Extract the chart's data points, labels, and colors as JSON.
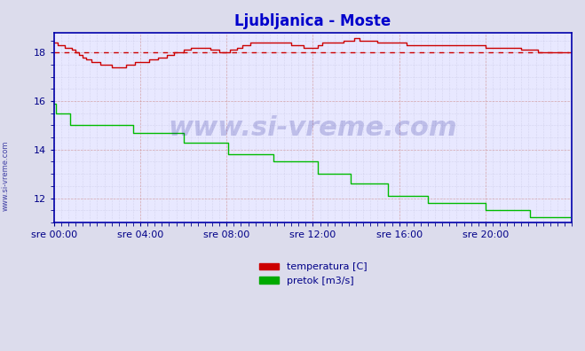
{
  "title": "Ljubljanica - Moste",
  "title_color": "#0000cc",
  "bg_color": "#e8e8f0",
  "plot_bg_color": "#e8e8ff",
  "grid_color_major": "#aaaacc",
  "grid_color_minor": "#ccccdd",
  "xlabel_color": "#000088",
  "ylabel_color": "#000088",
  "axis_color": "#0000aa",
  "watermark": "www.si-vreme.com",
  "xtick_labels": [
    "sre 00:00",
    "sre 04:00",
    "sre 08:00",
    "sre 12:00",
    "sre 16:00",
    "sre 20:00"
  ],
  "xtick_positions": [
    0,
    48,
    96,
    144,
    192,
    240
  ],
  "ytick_positions": [
    12,
    14,
    16,
    18
  ],
  "ylim": [
    11.0,
    18.8
  ],
  "xlim": [
    0,
    288
  ],
  "legend_labels": [
    "temperatura [C]",
    "pretok [m3/s]"
  ],
  "legend_colors": [
    "#cc0000",
    "#00aa00"
  ],
  "side_label": "www.si-vreme.com",
  "temp_color": "#cc0000",
  "flow_color": "#00bb00",
  "temp_avg_color": "#cc0000",
  "temp_data": [
    18.4,
    18.4,
    18.3,
    18.3,
    18.3,
    18.3,
    18.2,
    18.2,
    18.2,
    18.2,
    18.1,
    18.1,
    18.0,
    18.0,
    17.9,
    17.9,
    17.8,
    17.8,
    17.7,
    17.7,
    17.7,
    17.6,
    17.6,
    17.6,
    17.6,
    17.6,
    17.5,
    17.5,
    17.5,
    17.5,
    17.5,
    17.5,
    17.4,
    17.4,
    17.4,
    17.4,
    17.4,
    17.4,
    17.4,
    17.4,
    17.5,
    17.5,
    17.5,
    17.5,
    17.5,
    17.6,
    17.6,
    17.6,
    17.6,
    17.6,
    17.6,
    17.6,
    17.6,
    17.7,
    17.7,
    17.7,
    17.7,
    17.7,
    17.8,
    17.8,
    17.8,
    17.8,
    17.8,
    17.9,
    17.9,
    17.9,
    17.9,
    18.0,
    18.0,
    18.0,
    18.0,
    18.0,
    18.1,
    18.1,
    18.1,
    18.1,
    18.2,
    18.2,
    18.2,
    18.2,
    18.2,
    18.2,
    18.2,
    18.2,
    18.2,
    18.2,
    18.2,
    18.1,
    18.1,
    18.1,
    18.1,
    18.1,
    18.0,
    18.0,
    18.0,
    18.0,
    18.0,
    18.0,
    18.1,
    18.1,
    18.1,
    18.1,
    18.2,
    18.2,
    18.2,
    18.3,
    18.3,
    18.3,
    18.3,
    18.4,
    18.4,
    18.4,
    18.4,
    18.4,
    18.4,
    18.4,
    18.4,
    18.4,
    18.4,
    18.4,
    18.4,
    18.4,
    18.4,
    18.4,
    18.4,
    18.4,
    18.4,
    18.4,
    18.4,
    18.4,
    18.4,
    18.4,
    18.3,
    18.3,
    18.3,
    18.3,
    18.3,
    18.3,
    18.3,
    18.2,
    18.2,
    18.2,
    18.2,
    18.2,
    18.2,
    18.2,
    18.2,
    18.3,
    18.3,
    18.4,
    18.4,
    18.4,
    18.4,
    18.4,
    18.4,
    18.4,
    18.4,
    18.4,
    18.4,
    18.4,
    18.4,
    18.5,
    18.5,
    18.5,
    18.5,
    18.5,
    18.5,
    18.6,
    18.6,
    18.6,
    18.5,
    18.5,
    18.5,
    18.5,
    18.5,
    18.5,
    18.5,
    18.5,
    18.5,
    18.5,
    18.4,
    18.4,
    18.4,
    18.4,
    18.4,
    18.4,
    18.4,
    18.4,
    18.4,
    18.4,
    18.4,
    18.4,
    18.4,
    18.4,
    18.4,
    18.4,
    18.3,
    18.3,
    18.3,
    18.3,
    18.3,
    18.3,
    18.3,
    18.3,
    18.3,
    18.3,
    18.3,
    18.3,
    18.3,
    18.3,
    18.3,
    18.3,
    18.3,
    18.3,
    18.3,
    18.3,
    18.3,
    18.3,
    18.3,
    18.3,
    18.3,
    18.3,
    18.3,
    18.3,
    18.3,
    18.3,
    18.3,
    18.3,
    18.3,
    18.3,
    18.3,
    18.3,
    18.3,
    18.3,
    18.3,
    18.3,
    18.3,
    18.3,
    18.3,
    18.3,
    18.2,
    18.2,
    18.2,
    18.2,
    18.2,
    18.2,
    18.2,
    18.2,
    18.2,
    18.2,
    18.2,
    18.2,
    18.2,
    18.2,
    18.2,
    18.2,
    18.2,
    18.2,
    18.2,
    18.2,
    18.1,
    18.1,
    18.1,
    18.1,
    18.1,
    18.1,
    18.1,
    18.1,
    18.1,
    18.0,
    18.0,
    18.0,
    18.0,
    18.0,
    18.0,
    18.0,
    18.0,
    18.0,
    18.0,
    18.0,
    18.0,
    18.0,
    18.0,
    18.0,
    18.0,
    18.0,
    18.0
  ],
  "flow_data": [
    15.9,
    15.5,
    15.5,
    15.5,
    15.5,
    15.5,
    15.5,
    15.5,
    15.5,
    15.0,
    15.0,
    15.0,
    15.0,
    15.0,
    15.0,
    15.0,
    15.0,
    15.0,
    15.0,
    15.0,
    15.0,
    15.0,
    15.0,
    15.0,
    15.0,
    15.0,
    15.0,
    15.0,
    15.0,
    15.0,
    15.0,
    15.0,
    15.0,
    15.0,
    15.0,
    15.0,
    15.0,
    15.0,
    15.0,
    15.0,
    15.0,
    15.0,
    15.0,
    15.0,
    14.7,
    14.7,
    14.7,
    14.7,
    14.7,
    14.7,
    14.7,
    14.7,
    14.7,
    14.7,
    14.7,
    14.7,
    14.7,
    14.7,
    14.7,
    14.7,
    14.7,
    14.7,
    14.7,
    14.7,
    14.7,
    14.7,
    14.7,
    14.7,
    14.7,
    14.7,
    14.7,
    14.7,
    14.3,
    14.3,
    14.3,
    14.3,
    14.3,
    14.3,
    14.3,
    14.3,
    14.3,
    14.3,
    14.3,
    14.3,
    14.3,
    14.3,
    14.3,
    14.3,
    14.3,
    14.3,
    14.3,
    14.3,
    14.3,
    14.3,
    14.3,
    14.3,
    14.3,
    13.8,
    13.8,
    13.8,
    13.8,
    13.8,
    13.8,
    13.8,
    13.8,
    13.8,
    13.8,
    13.8,
    13.8,
    13.8,
    13.8,
    13.8,
    13.8,
    13.8,
    13.8,
    13.8,
    13.8,
    13.8,
    13.8,
    13.8,
    13.8,
    13.8,
    13.5,
    13.5,
    13.5,
    13.5,
    13.5,
    13.5,
    13.5,
    13.5,
    13.5,
    13.5,
    13.5,
    13.5,
    13.5,
    13.5,
    13.5,
    13.5,
    13.5,
    13.5,
    13.5,
    13.5,
    13.5,
    13.5,
    13.5,
    13.5,
    13.5,
    13.0,
    13.0,
    13.0,
    13.0,
    13.0,
    13.0,
    13.0,
    13.0,
    13.0,
    13.0,
    13.0,
    13.0,
    13.0,
    13.0,
    13.0,
    13.0,
    13.0,
    13.0,
    12.6,
    12.6,
    12.6,
    12.6,
    12.6,
    12.6,
    12.6,
    12.6,
    12.6,
    12.6,
    12.6,
    12.6,
    12.6,
    12.6,
    12.6,
    12.6,
    12.6,
    12.6,
    12.6,
    12.6,
    12.6,
    12.1,
    12.1,
    12.1,
    12.1,
    12.1,
    12.1,
    12.1,
    12.1,
    12.1,
    12.1,
    12.1,
    12.1,
    12.1,
    12.1,
    12.1,
    12.1,
    12.1,
    12.1,
    12.1,
    12.1,
    12.1,
    12.1,
    11.8,
    11.8,
    11.8,
    11.8,
    11.8,
    11.8,
    11.8,
    11.8,
    11.8,
    11.8,
    11.8,
    11.8,
    11.8,
    11.8,
    11.8,
    11.8,
    11.8,
    11.8,
    11.8,
    11.8,
    11.8,
    11.8,
    11.8,
    11.8,
    11.8,
    11.8,
    11.8,
    11.8,
    11.8,
    11.8,
    11.8,
    11.8,
    11.5,
    11.5,
    11.5,
    11.5,
    11.5,
    11.5,
    11.5,
    11.5,
    11.5,
    11.5,
    11.5,
    11.5,
    11.5,
    11.5,
    11.5,
    11.5,
    11.5,
    11.5,
    11.5,
    11.5,
    11.5,
    11.5,
    11.5,
    11.5,
    11.5,
    11.2,
    11.2,
    11.2,
    11.2,
    11.2,
    11.2,
    11.2,
    11.2,
    11.2,
    11.2,
    11.2,
    11.2,
    11.2,
    11.2,
    11.2,
    11.2,
    11.2,
    11.2,
    11.2,
    11.2,
    11.2,
    11.2,
    11.2
  ],
  "avg_line_value": 18.0,
  "avg_line_color": "#cc0000",
  "avg_line_style": "dashed"
}
